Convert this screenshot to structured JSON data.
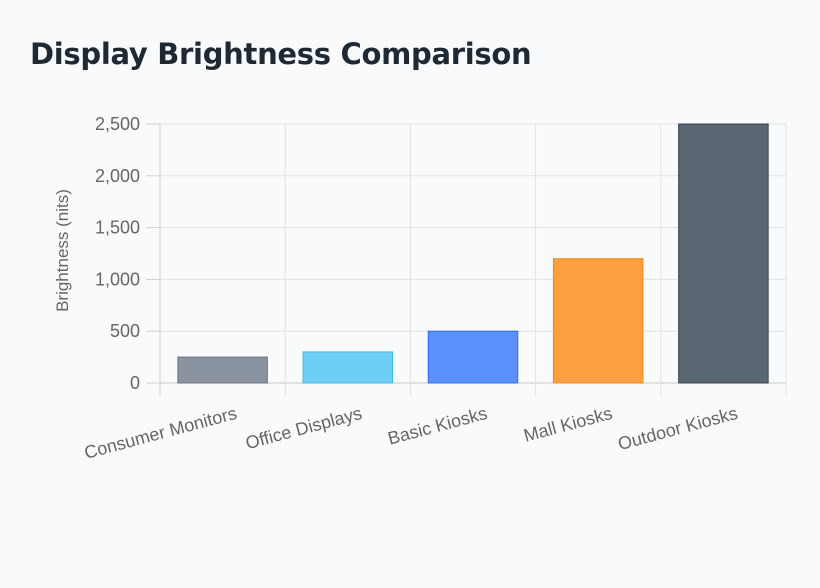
{
  "chart_data": {
    "type": "bar",
    "title": "Display Brightness Comparison",
    "xlabel": "",
    "ylabel": "Brightness (nits)",
    "ylim": [
      0,
      2500
    ],
    "yticks": [
      0,
      500,
      1000,
      1500,
      2000,
      2500
    ],
    "ytick_labels": [
      "0",
      "500",
      "1,000",
      "1,500",
      "2,000",
      "2,500"
    ],
    "grid": true,
    "categories": [
      "Consumer Monitors",
      "Office Displays",
      "Basic Kiosks",
      "Mall Kiosks",
      "Outdoor Kiosks"
    ],
    "values": [
      250,
      300,
      500,
      1200,
      2500
    ],
    "colors": [
      {
        "fill": "#8a94a1",
        "stroke": "#6b7380"
      },
      {
        "fill": "#6dcff6",
        "stroke": "#46b7e3"
      },
      {
        "fill": "#5b8ff9",
        "stroke": "#2f6fe8"
      },
      {
        "fill": "#ff9f43",
        "stroke": "#f0871b"
      },
      {
        "fill": "#5a6672",
        "stroke": "#39434d"
      }
    ]
  }
}
